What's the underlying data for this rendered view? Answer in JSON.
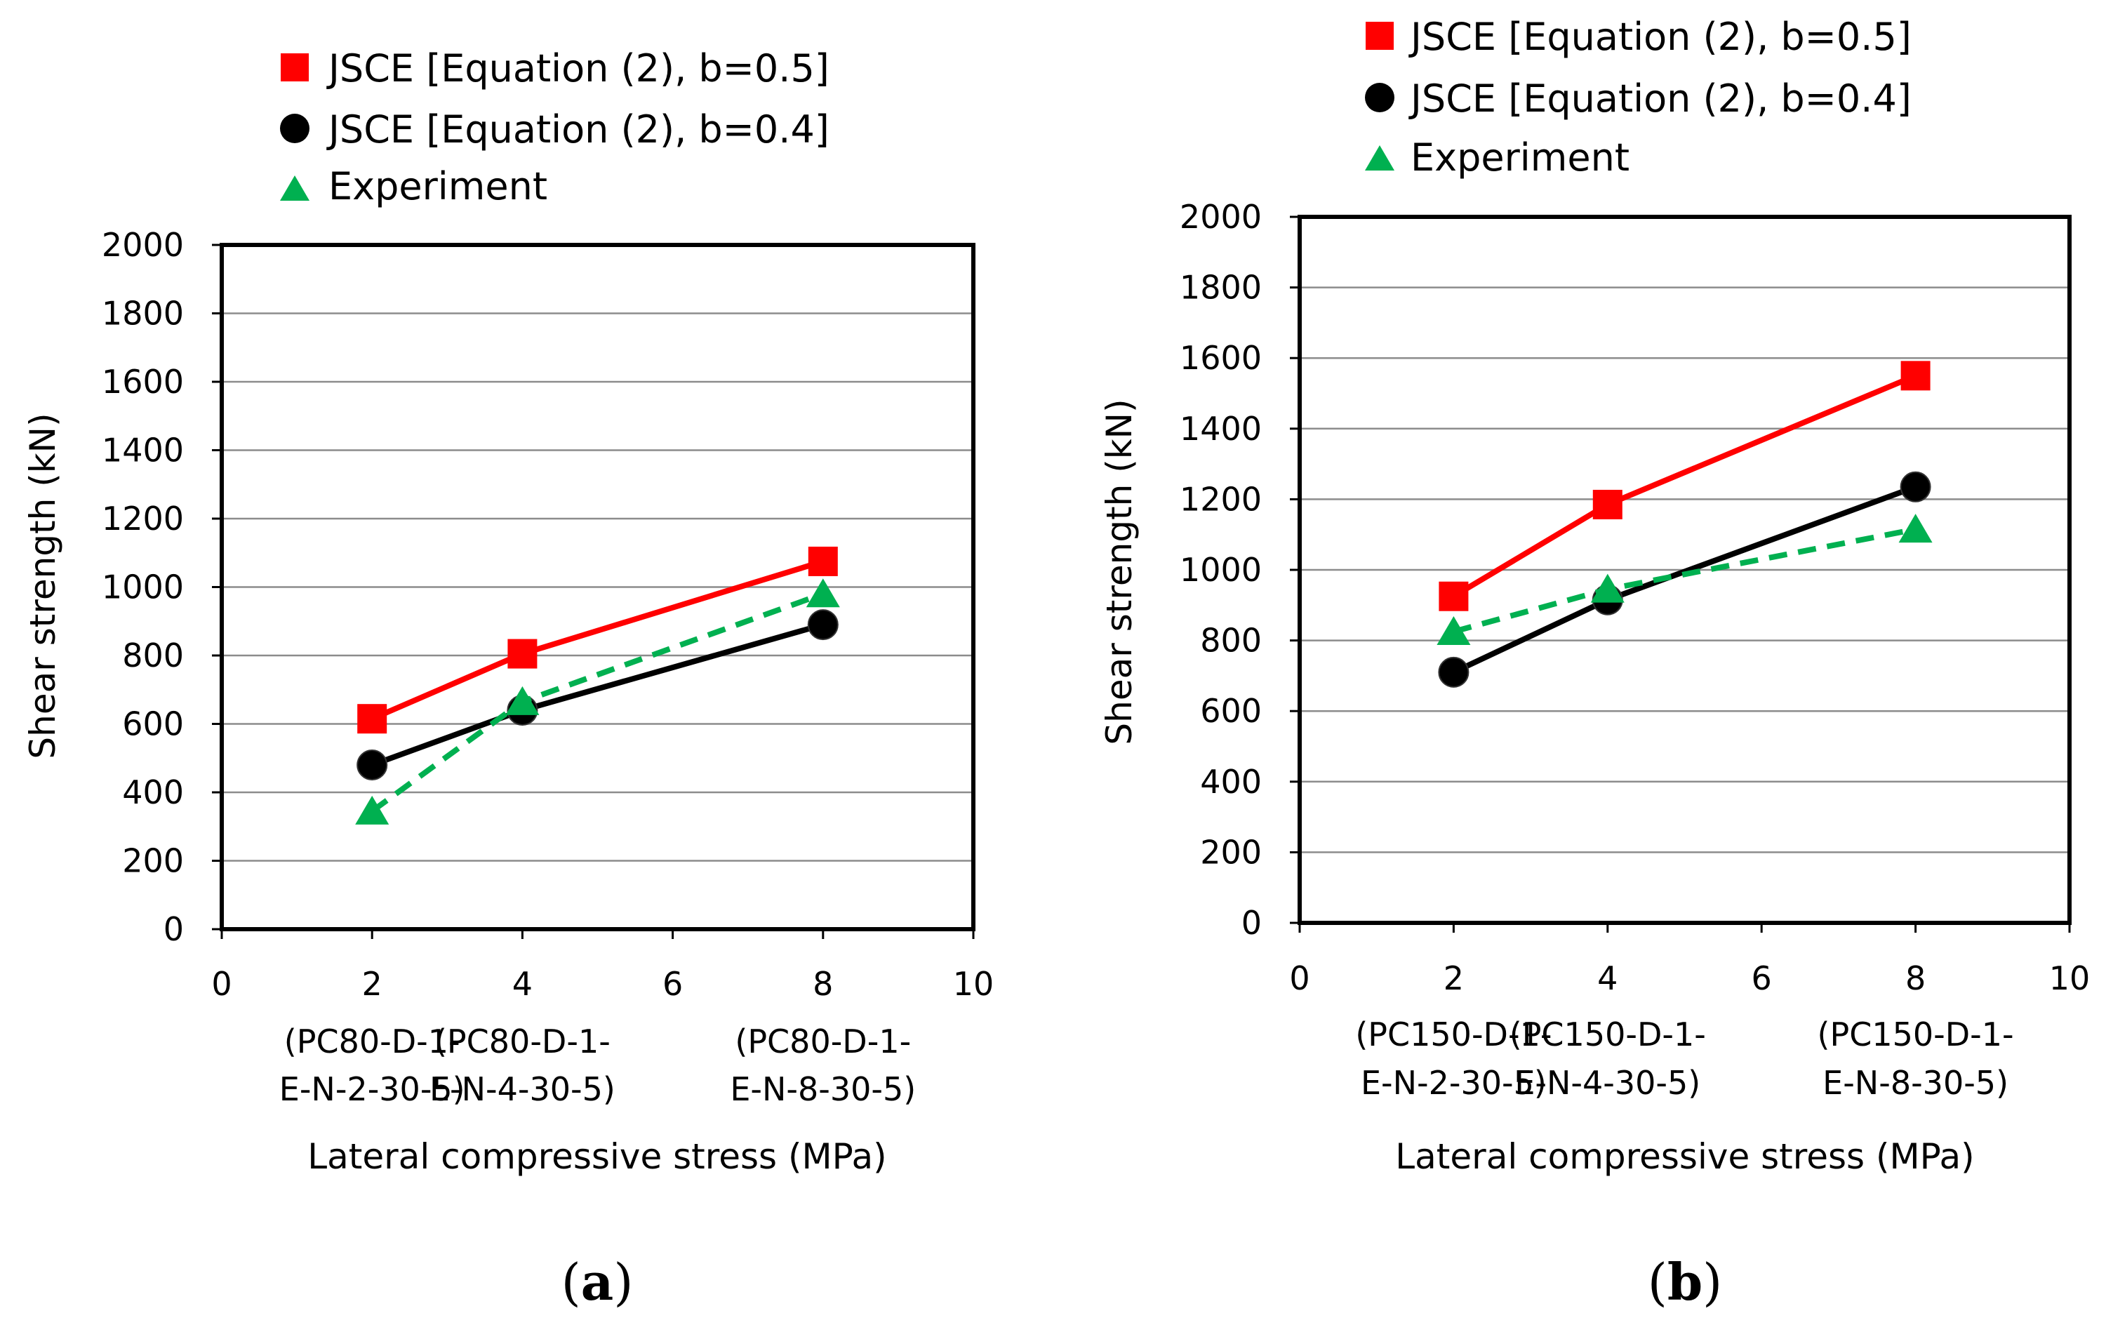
{
  "chart_data": [
    {
      "type": "line",
      "panel_label": {
        "open": "(",
        "letter": "a",
        "close": ")"
      },
      "xlabel": "Lateral compressive stress (MPa)",
      "ylabel": "Shear strength (kN)",
      "xlim": [
        0,
        10
      ],
      "ylim": [
        0,
        2000
      ],
      "xticks": [
        0,
        2,
        4,
        6,
        8,
        10
      ],
      "yticks": [
        0,
        200,
        400,
        600,
        800,
        1000,
        1200,
        1400,
        1600,
        1800,
        2000
      ],
      "grid": "horizontal",
      "legend_position": "top",
      "category_labels": [
        {
          "x": 2,
          "line1": "(PC80-D-1-",
          "line2": "E-N-2-30-5)"
        },
        {
          "x": 4,
          "line1": "(PC80-D-1-",
          "line2": "E-N-4-30-5)"
        },
        {
          "x": 8,
          "line1": "(PC80-D-1-",
          "line2": "E-N-8-30-5)"
        }
      ],
      "series": [
        {
          "name": "JSCE [Equation (2), b=0.5]",
          "marker": "square",
          "color": "#ff0000",
          "dash": "solid",
          "x": [
            2,
            4,
            8
          ],
          "y": [
            615,
            805,
            1075
          ]
        },
        {
          "name": "JSCE [Equation (2), b=0.4]",
          "marker": "circle",
          "color": "#000000",
          "dash": "solid",
          "x": [
            2,
            4,
            8
          ],
          "y": [
            480,
            640,
            890
          ]
        },
        {
          "name": "Experiment",
          "marker": "triangle",
          "color": "#00b050",
          "dash": "dashed",
          "x": [
            2,
            4,
            8
          ],
          "y": [
            345,
            665,
            980
          ]
        }
      ]
    },
    {
      "type": "line",
      "panel_label": {
        "open": "(",
        "letter": "b",
        "close": ")"
      },
      "xlabel": "Lateral compressive stress (MPa)",
      "ylabel": "Shear strength (kN)",
      "xlim": [
        0,
        10
      ],
      "ylim": [
        0,
        2000
      ],
      "xticks": [
        0,
        2,
        4,
        6,
        8,
        10
      ],
      "yticks": [
        0,
        200,
        400,
        600,
        800,
        1000,
        1200,
        1400,
        1600,
        1800,
        2000
      ],
      "grid": "horizontal",
      "legend_position": "top",
      "category_labels": [
        {
          "x": 2,
          "line1": "(PC150-D-1-",
          "line2": "E-N-2-30-5)"
        },
        {
          "x": 4,
          "line1": "(PC150-D-1-",
          "line2": "E-N-4-30-5)"
        },
        {
          "x": 8,
          "line1": "(PC150-D-1-",
          "line2": "E-N-8-30-5)"
        }
      ],
      "series": [
        {
          "name": "JSCE [Equation (2), b=0.5]",
          "marker": "square",
          "color": "#ff0000",
          "dash": "solid",
          "x": [
            2,
            4,
            8
          ],
          "y": [
            925,
            1185,
            1550
          ]
        },
        {
          "name": "JSCE [Equation (2), b=0.4]",
          "marker": "circle",
          "color": "#000000",
          "dash": "solid",
          "x": [
            2,
            4,
            8
          ],
          "y": [
            710,
            915,
            1235
          ]
        },
        {
          "name": "Experiment",
          "marker": "triangle",
          "color": "#00b050",
          "dash": "dashed",
          "x": [
            2,
            4,
            8
          ],
          "y": [
            825,
            945,
            1115
          ]
        }
      ]
    }
  ]
}
